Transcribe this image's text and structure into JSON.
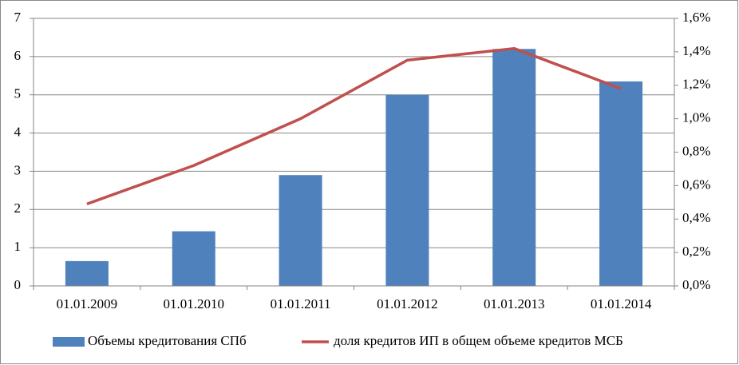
{
  "chart_data": {
    "type": "bar",
    "categories": [
      "01.01.2009",
      "01.01.2010",
      "01.01.2011",
      "01.01.2012",
      "01.01.2013",
      "01.01.2014"
    ],
    "series": [
      {
        "name": "Объемы кредитования СПб",
        "color": "#4f81bd",
        "type": "bar",
        "values": [
          0.65,
          1.43,
          2.9,
          5.0,
          6.2,
          5.35
        ]
      },
      {
        "name": "доля кредитов ИП в общем объеме кредитов МСБ",
        "color": "#c0504d",
        "type": "line",
        "axis": "y2",
        "values": [
          0.49,
          0.72,
          1.0,
          1.35,
          1.42,
          1.18
        ]
      }
    ],
    "ylim": [
      0,
      7
    ],
    "yticks": [
      0,
      1,
      2,
      3,
      4,
      5,
      6,
      7
    ],
    "y2lim": [
      0,
      1.6
    ],
    "y2ticks": [
      {
        "value": 0,
        "label": "0,0%"
      },
      {
        "value": 0.2,
        "label": "0,2%"
      },
      {
        "value": 0.4,
        "label": "0,4%"
      },
      {
        "value": 0.6,
        "label": "0,6%"
      },
      {
        "value": 0.8,
        "label": "0,8%"
      },
      {
        "value": 1.0,
        "label": "1,0%"
      },
      {
        "value": 1.2,
        "label": "1,2%"
      },
      {
        "value": 1.4,
        "label": "1,4%"
      },
      {
        "value": 1.6,
        "label": "1,6%"
      }
    ],
    "grid": true,
    "legend": "bottom"
  }
}
